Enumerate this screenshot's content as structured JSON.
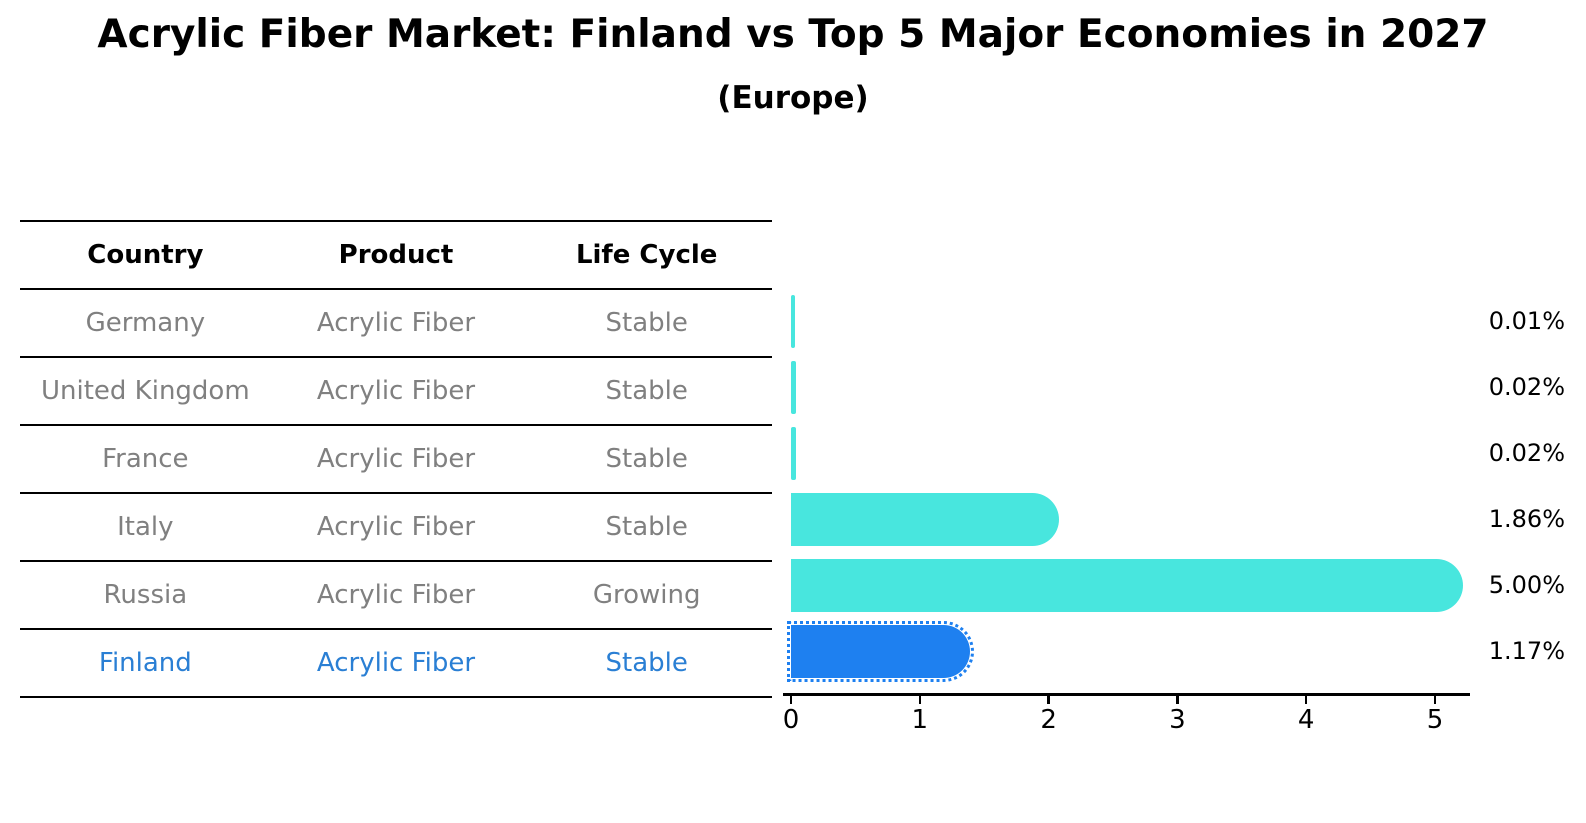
{
  "header": {
    "title": "Acrylic Fiber Market: Finland vs Top 5 Major Economies in 2027",
    "subtitle": "(Europe)"
  },
  "table": {
    "headers": [
      "Country",
      "Product",
      "Life Cycle"
    ],
    "rows": [
      [
        "Germany",
        "Acrylic Fiber",
        "Stable"
      ],
      [
        "United Kingdom",
        "Acrylic Fiber",
        "Stable"
      ],
      [
        "France",
        "Acrylic Fiber",
        "Stable"
      ],
      [
        "Italy",
        "Acrylic Fiber",
        "Stable"
      ],
      [
        "Russia",
        "Acrylic Fiber",
        "Growing"
      ],
      [
        "Finland",
        "Acrylic Fiber",
        "Stable"
      ]
    ],
    "highlighted_row": "Finland",
    "colors": {
      "header_text": "#000000",
      "row_text": "#808080",
      "highlight_text": "#2A7FD4",
      "line": "#000000"
    }
  },
  "chart_data": {
    "type": "bar",
    "orientation": "horizontal",
    "title": "Acrylic Fiber Market: Finland vs Top 5 Major Economies in 2027",
    "subtitle": "(Europe)",
    "categories": [
      "Germany",
      "United Kingdom",
      "France",
      "Italy",
      "Russia",
      "Finland"
    ],
    "values": [
      0.01,
      0.02,
      0.02,
      1.86,
      5.0,
      1.17
    ],
    "value_labels": [
      "0.01%",
      "0.02%",
      "0.02%",
      "1.86%",
      "5.00%",
      "1.17%"
    ],
    "unit": "percent",
    "xlabel": "",
    "ylabel": "",
    "xlim": [
      0,
      5.3
    ],
    "xticks": [
      "0",
      "1",
      "2",
      "3",
      "4",
      "5"
    ],
    "grid": false,
    "legend": "none",
    "bar_color": "#48E6DE",
    "highlight_index": 5,
    "highlight_color": "#1E80F0",
    "highlight_border_style": "dotted"
  }
}
